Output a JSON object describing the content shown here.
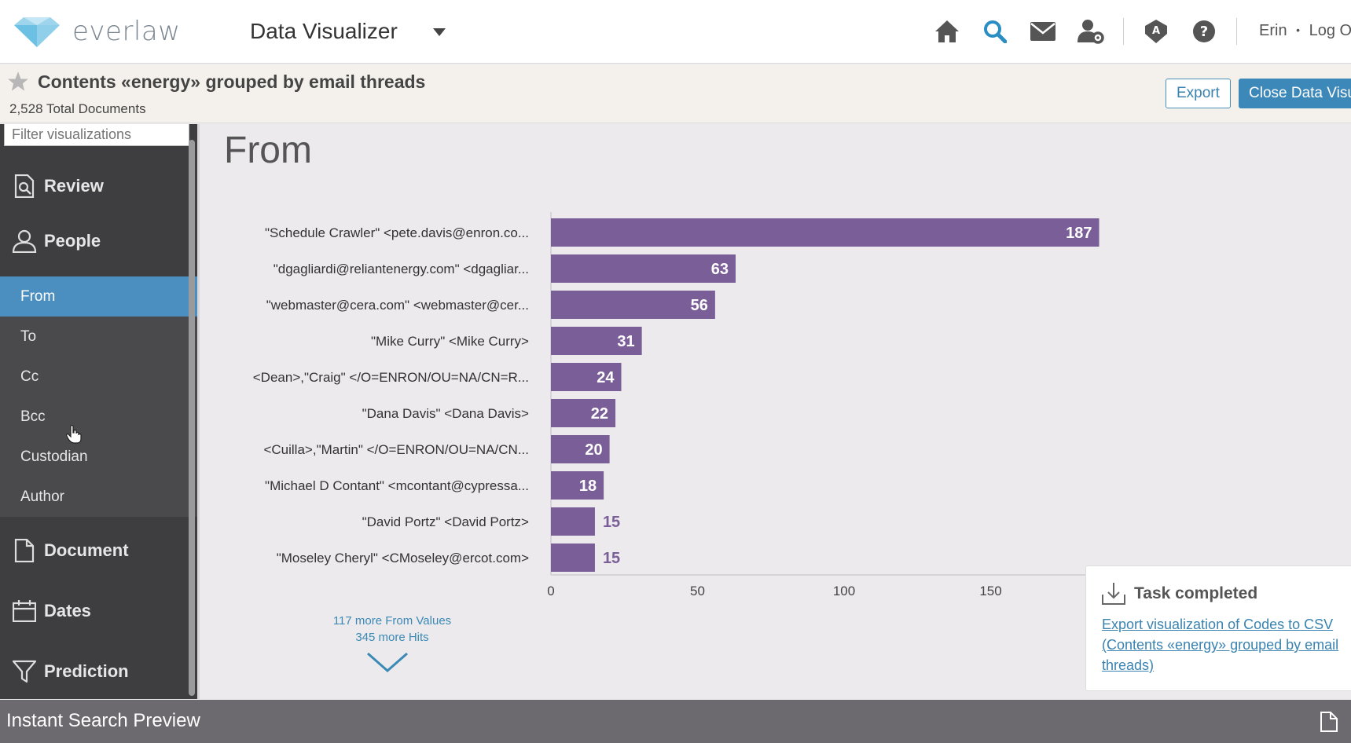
{
  "header": {
    "logo_text": "everlaw",
    "app_title": "Data Visualizer",
    "nav_icons": [
      "home-icon",
      "search-icon",
      "mail-icon",
      "user-settings-icon",
      "assignment-icon",
      "help-icon"
    ],
    "user_name": "Erin",
    "separator": "•",
    "logout_label": "Log Out"
  },
  "subheader": {
    "title": "Contents «energy» grouped by email threads",
    "total_docs": "2,528 Total Documents",
    "export_label": "Export",
    "close_label": "Close Data Visualizer"
  },
  "sidebar": {
    "filter_placeholder": "Filter visualizations",
    "sections": {
      "review": "Review",
      "people": "People",
      "document": "Document",
      "dates": "Dates",
      "prediction": "Prediction"
    },
    "people_items": [
      "From",
      "To",
      "Cc",
      "Bcc",
      "Custodian",
      "Author"
    ],
    "active_item": "From"
  },
  "main": {
    "title": "From",
    "more_values": "117 more From Values",
    "more_hits": "345 more Hits"
  },
  "chart_data": {
    "type": "bar",
    "orientation": "horizontal",
    "categories": [
      "\"Schedule Crawler\" <pete.davis@enron.co...",
      "\"dgagliardi@reliantenergy.com\" <dgagliar...",
      "\"webmaster@cera.com\" <webmaster@cer...",
      "\"Mike Curry\" <Mike Curry>",
      "<Dean>,\"Craig\" </O=ENRON/OU=NA/CN=R...",
      "\"Dana Davis\" <Dana Davis>",
      "<Cuilla>,\"Martin\" </O=ENRON/OU=NA/CN...",
      "\"Michael D Contant\" <mcontant@cypressa...",
      "\"David Portz\" <David Portz>",
      "\"Moseley Cheryl\" <CMoseley@ercot.com>"
    ],
    "values": [
      187,
      63,
      56,
      31,
      24,
      22,
      20,
      18,
      15,
      15
    ],
    "xticks": [
      0,
      50,
      100,
      150
    ],
    "xlim": [
      0,
      200
    ],
    "bar_color": "#7a5e98",
    "grid": false
  },
  "toast": {
    "title": "Task completed",
    "link_text": "Export visualization of Codes to CSV (Contents «energy» grouped by email threads)"
  },
  "bottom": {
    "label": "Instant Search Preview"
  },
  "colors": {
    "accent": "#3c88b8",
    "sidebar_bg": "#3e3e40",
    "active_item": "#4b8fc0",
    "bar": "#7a5e98"
  }
}
